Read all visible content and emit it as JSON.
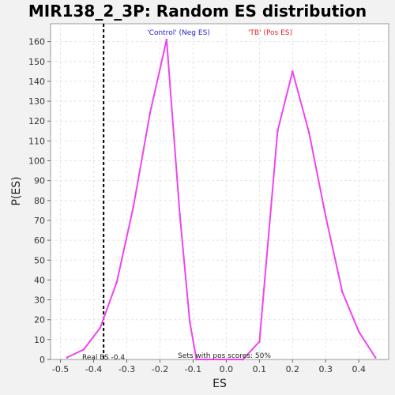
{
  "chart_data": {
    "type": "line",
    "title": "MIR138_2_3P: Random ES distribution",
    "xlabel": "ES",
    "ylabel": "P(ES)",
    "xlim": [
      -0.53,
      0.49
    ],
    "ylim": [
      0,
      169
    ],
    "x_ticks": [
      -0.5,
      -0.4,
      -0.3,
      -0.2,
      -0.1,
      0.0,
      0.1,
      0.2,
      0.3,
      0.4
    ],
    "x_tick_labels": [
      "-0.5",
      "-0.4",
      "-0.3",
      "-0.2",
      "-0.1",
      "0.0",
      "0.1",
      "0.2",
      "0.3",
      "0.4"
    ],
    "y_ticks": [
      0,
      10,
      20,
      30,
      40,
      50,
      60,
      70,
      80,
      90,
      100,
      110,
      120,
      130,
      140,
      150,
      160
    ],
    "y_tick_labels": [
      "0",
      "10",
      "20",
      "30",
      "40",
      "50",
      "60",
      "70",
      "80",
      "90",
      "100",
      "110",
      "120",
      "130",
      "140",
      "150",
      "160"
    ],
    "grid": true,
    "series": [
      {
        "color": "#ee44ee",
        "x": [
          -0.48,
          -0.43,
          -0.38,
          -0.33,
          -0.28,
          -0.23,
          -0.18,
          -0.14,
          -0.11,
          -0.09,
          -0.06,
          0.0,
          0.05,
          0.1,
          0.155,
          0.2,
          0.25,
          0.3,
          0.35,
          0.4,
          0.45
        ],
        "y": [
          1,
          5,
          16,
          39,
          77,
          124,
          161,
          73,
          19,
          0,
          0,
          0,
          0,
          9,
          115,
          145,
          114,
          72,
          34,
          14,
          1
        ]
      }
    ],
    "real_es_line": {
      "x": -0.37,
      "style": "dashed",
      "color": "#000000"
    },
    "legend": [
      {
        "text": "'Control' (Neg ES)",
        "color": "#2222cc"
      },
      {
        "text": "'TB' (Pos ES)",
        "color": "#dd2222"
      }
    ],
    "annotations": {
      "real_es": "Real ES -0.4",
      "pos_scores": "Sets with pos scores: 50%"
    }
  }
}
